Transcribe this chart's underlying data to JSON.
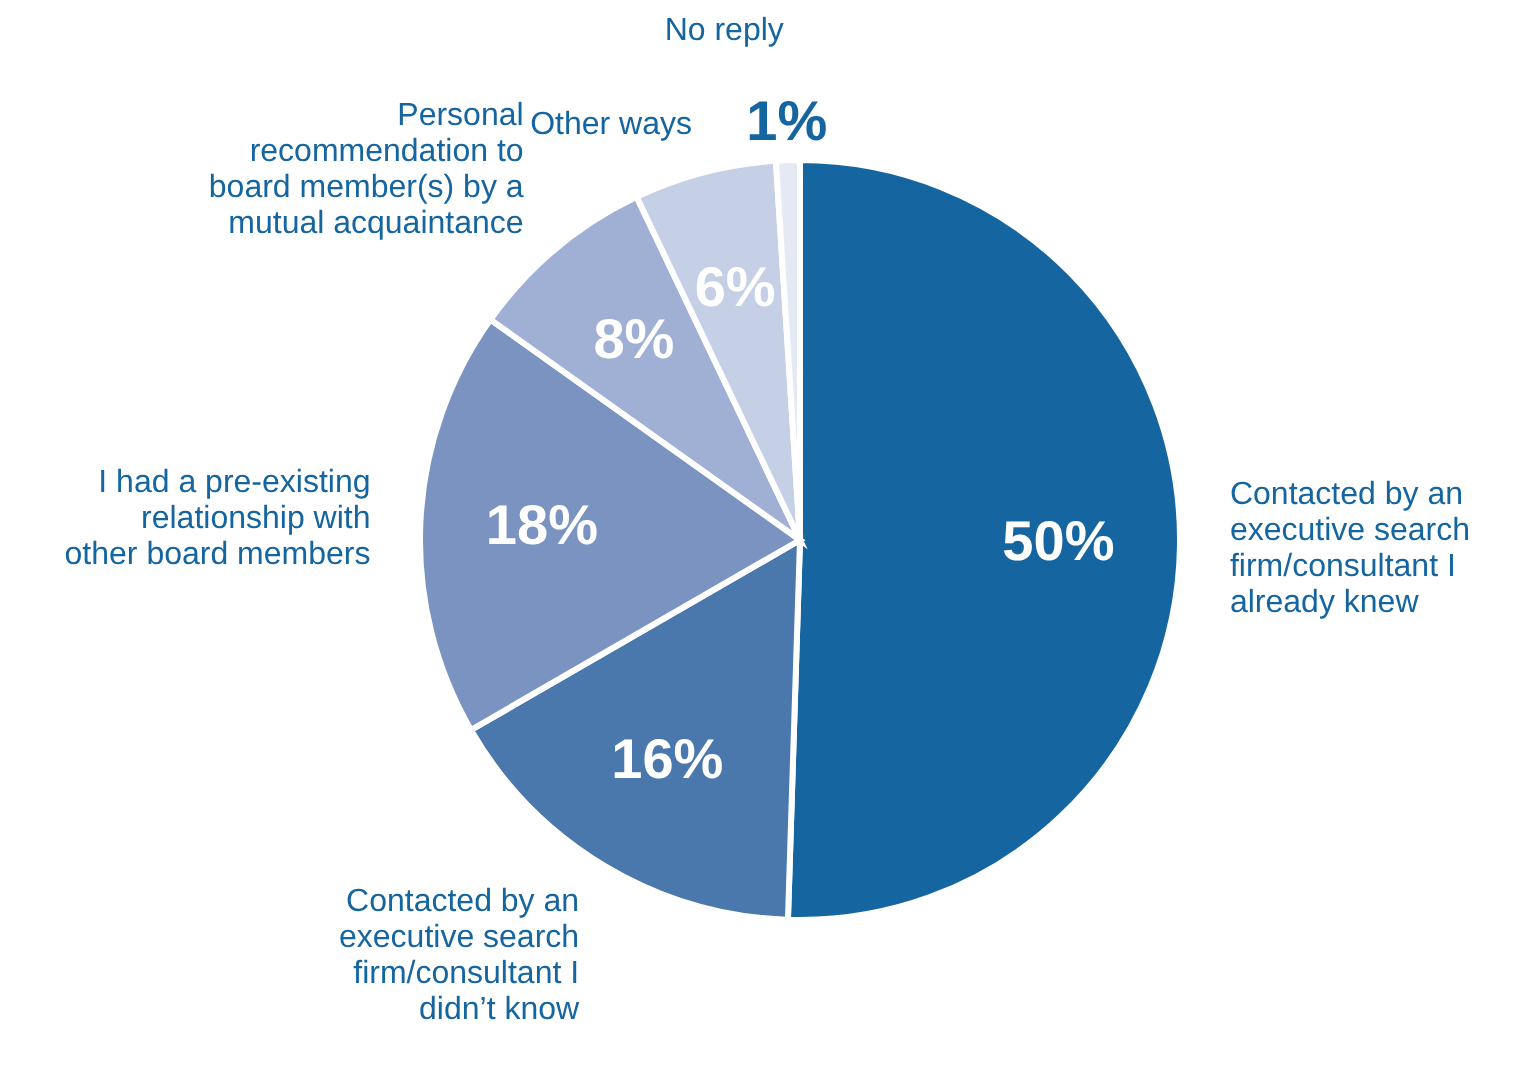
{
  "chart_data": {
    "type": "pie",
    "categories": [
      "Contacted by an executive search firm/consultant I already knew",
      "Contacted by an executive search firm/consultant I didn’t know",
      "I had a pre-existing relationship with other board members",
      "Personal recommendation to board member(s) by a mutual acquaintance",
      "Other ways",
      "No reply"
    ],
    "values": [
      50,
      16,
      18,
      8,
      6,
      1
    ],
    "value_labels": [
      "50%",
      "16%",
      "18%",
      "8%",
      "6%",
      "1%"
    ],
    "colors": [
      "#1565a0",
      "#4a78ad",
      "#7a93c1",
      "#9fb0d4",
      "#c5cfe6",
      "#e4e9f4"
    ]
  }
}
